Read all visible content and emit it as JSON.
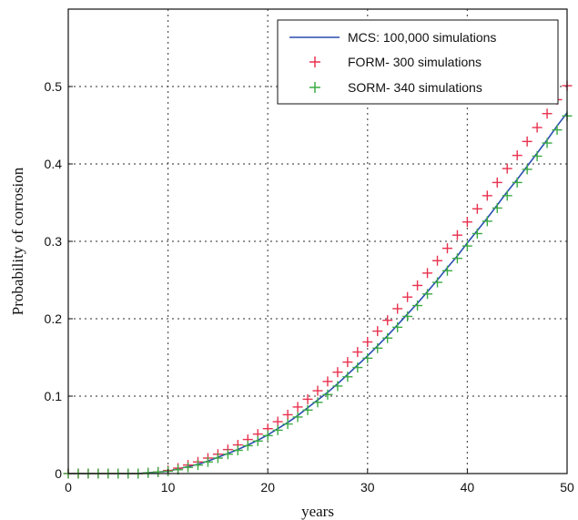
{
  "chart_data": {
    "type": "line",
    "title": "",
    "xlabel": "years",
    "ylabel": "Probability of corrosion",
    "xlim": [
      0,
      50
    ],
    "ylim": [
      0,
      0.6
    ],
    "xticks": [
      0,
      10,
      20,
      30,
      40,
      50
    ],
    "yticks": [
      0,
      0.1,
      0.2,
      0.3,
      0.4,
      0.5
    ],
    "xtick_labels": [
      "0",
      "10",
      "20",
      "30",
      "40",
      "50"
    ],
    "ytick_labels": [
      "0",
      "0.1",
      "0.2",
      "0.3",
      "0.4",
      "0.5"
    ],
    "grid": "dotted",
    "legend_position": "top-right",
    "series": [
      {
        "name": "MCS: 100,000 simulations",
        "style": "line",
        "color": "#2a4fb0",
        "x": [
          0,
          1,
          2,
          3,
          4,
          5,
          6,
          7,
          8,
          9,
          10,
          11,
          12,
          13,
          14,
          15,
          16,
          17,
          18,
          19,
          20,
          21,
          22,
          23,
          24,
          25,
          26,
          27,
          28,
          29,
          30,
          31,
          32,
          33,
          34,
          35,
          36,
          37,
          38,
          39,
          40,
          41,
          42,
          43,
          44,
          45,
          46,
          47,
          48,
          49,
          50
        ],
        "y": [
          0,
          0,
          0,
          0,
          0,
          0,
          0,
          0,
          0.001,
          0.002,
          0.003,
          0.006,
          0.009,
          0.012,
          0.016,
          0.021,
          0.026,
          0.031,
          0.037,
          0.043,
          0.05,
          0.058,
          0.066,
          0.075,
          0.085,
          0.095,
          0.105,
          0.116,
          0.128,
          0.14,
          0.152,
          0.165,
          0.178,
          0.192,
          0.206,
          0.22,
          0.235,
          0.25,
          0.266,
          0.281,
          0.298,
          0.314,
          0.33,
          0.347,
          0.364,
          0.38,
          0.397,
          0.414,
          0.431,
          0.449,
          0.466
        ]
      },
      {
        "name": "FORM- 300 simulations",
        "style": "marker-plus",
        "color": "#e8324f",
        "x": [
          0,
          1,
          2,
          3,
          4,
          5,
          6,
          7,
          8,
          9,
          10,
          11,
          12,
          13,
          14,
          15,
          16,
          17,
          18,
          19,
          20,
          21,
          22,
          23,
          24,
          25,
          26,
          27,
          28,
          29,
          30,
          31,
          32,
          33,
          34,
          35,
          36,
          37,
          38,
          39,
          40,
          41,
          42,
          43,
          44,
          45,
          46,
          47,
          48,
          49,
          50
        ],
        "y": [
          0,
          0,
          0,
          0,
          0,
          0,
          0,
          0,
          0.001,
          0.002,
          0.004,
          0.007,
          0.011,
          0.015,
          0.02,
          0.025,
          0.031,
          0.037,
          0.044,
          0.051,
          0.058,
          0.067,
          0.076,
          0.086,
          0.096,
          0.107,
          0.119,
          0.131,
          0.144,
          0.157,
          0.17,
          0.184,
          0.198,
          0.213,
          0.228,
          0.243,
          0.259,
          0.275,
          0.291,
          0.308,
          0.325,
          0.342,
          0.359,
          0.376,
          0.394,
          0.411,
          0.429,
          0.447,
          0.465,
          0.483,
          0.501
        ]
      },
      {
        "name": "SORM- 340 simulations",
        "style": "marker-plus",
        "color": "#3cab44",
        "x": [
          0,
          1,
          2,
          3,
          4,
          5,
          6,
          7,
          8,
          9,
          10,
          11,
          12,
          13,
          14,
          15,
          16,
          17,
          18,
          19,
          20,
          21,
          22,
          23,
          24,
          25,
          26,
          27,
          28,
          29,
          30,
          31,
          32,
          33,
          34,
          35,
          36,
          37,
          38,
          39,
          40,
          41,
          42,
          43,
          44,
          45,
          46,
          47,
          48,
          49,
          50
        ],
        "y": [
          0,
          0,
          0,
          0,
          0,
          0,
          0,
          0,
          0.001,
          0.002,
          0.003,
          0.005,
          0.008,
          0.011,
          0.015,
          0.02,
          0.025,
          0.03,
          0.036,
          0.042,
          0.049,
          0.056,
          0.064,
          0.073,
          0.082,
          0.092,
          0.102,
          0.113,
          0.125,
          0.137,
          0.149,
          0.162,
          0.175,
          0.189,
          0.203,
          0.217,
          0.232,
          0.247,
          0.262,
          0.278,
          0.294,
          0.31,
          0.326,
          0.343,
          0.359,
          0.376,
          0.393,
          0.41,
          0.427,
          0.444,
          0.462
        ]
      }
    ]
  }
}
